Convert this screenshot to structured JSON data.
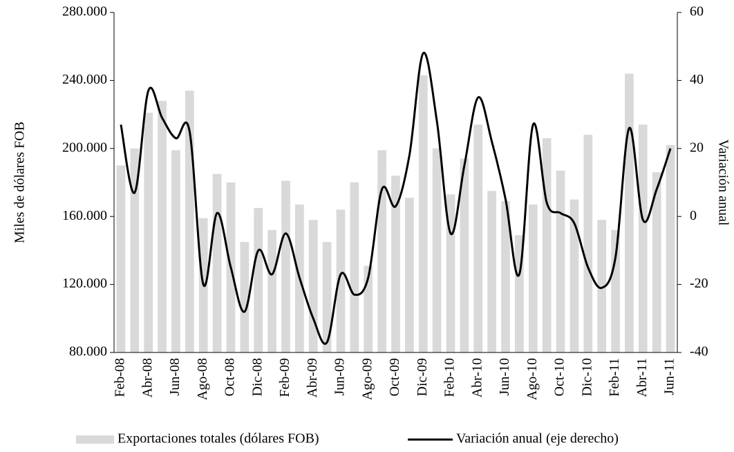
{
  "chart_data": {
    "type": "bar_line",
    "categories": [
      "Feb-08",
      null,
      "Abr-08",
      null,
      "Jun-08",
      null,
      "Ago-08",
      null,
      "Oct-08",
      null,
      "Dic-08",
      null,
      "Feb-09",
      null,
      "Abr-09",
      null,
      "Jun-09",
      null,
      "Ago-09",
      null,
      "Oct-09",
      null,
      "Dic-09",
      null,
      "Feb-10",
      null,
      "Abr-10",
      null,
      "Jun-10",
      null,
      "Ago-10",
      null,
      "Oct-10",
      null,
      "Dic-10",
      null,
      "Feb-11",
      null,
      "Abr-11",
      null,
      "Jun-11"
    ],
    "series": [
      {
        "name": "Exportaciones totales (dólares FOB)",
        "color": "#d9d9d9",
        "type": "bar",
        "values": [
          190000,
          200000,
          221000,
          228000,
          199000,
          234000,
          159000,
          185000,
          180000,
          145000,
          165000,
          152000,
          181000,
          167000,
          158000,
          145000,
          164000,
          180000,
          131000,
          199000,
          184000,
          171000,
          243000,
          200000,
          173000,
          194000,
          214000,
          175000,
          169000,
          149000,
          167000,
          206000,
          187000,
          170000,
          208000,
          158000,
          152000,
          244000,
          214000,
          186000,
          202000
        ]
      },
      {
        "name": "Variación anual (eje derecho)",
        "color": "#000000",
        "type": "line",
        "axis": "y2",
        "values": [
          27,
          7,
          37,
          29,
          23,
          25,
          -20,
          1,
          -15,
          -28,
          -10,
          -17,
          -5,
          -18,
          -30,
          -37,
          -17,
          -23,
          -18,
          8,
          3,
          18,
          48,
          28,
          -5,
          15,
          35,
          22,
          5,
          -17,
          27,
          4,
          1,
          -2,
          -15,
          -21,
          -12,
          26,
          -1,
          8,
          20
        ]
      }
    ],
    "y_label": "Miles de dólares FOB",
    "y2_label": "Variación anual",
    "ylim": [
      80000,
      280000
    ],
    "yticks": [
      {
        "value": 80000,
        "label": "80.000"
      },
      {
        "value": 120000,
        "label": "120.000"
      },
      {
        "value": 160000,
        "label": "160.000"
      },
      {
        "value": 200000,
        "label": "200.000"
      },
      {
        "value": 240000,
        "label": "240.000"
      },
      {
        "value": 280000,
        "label": "280.000"
      }
    ],
    "y2lim": [
      -40,
      60
    ],
    "y2ticks": [
      -40,
      -20,
      0,
      20,
      40,
      60
    ],
    "legend": "bottom"
  }
}
